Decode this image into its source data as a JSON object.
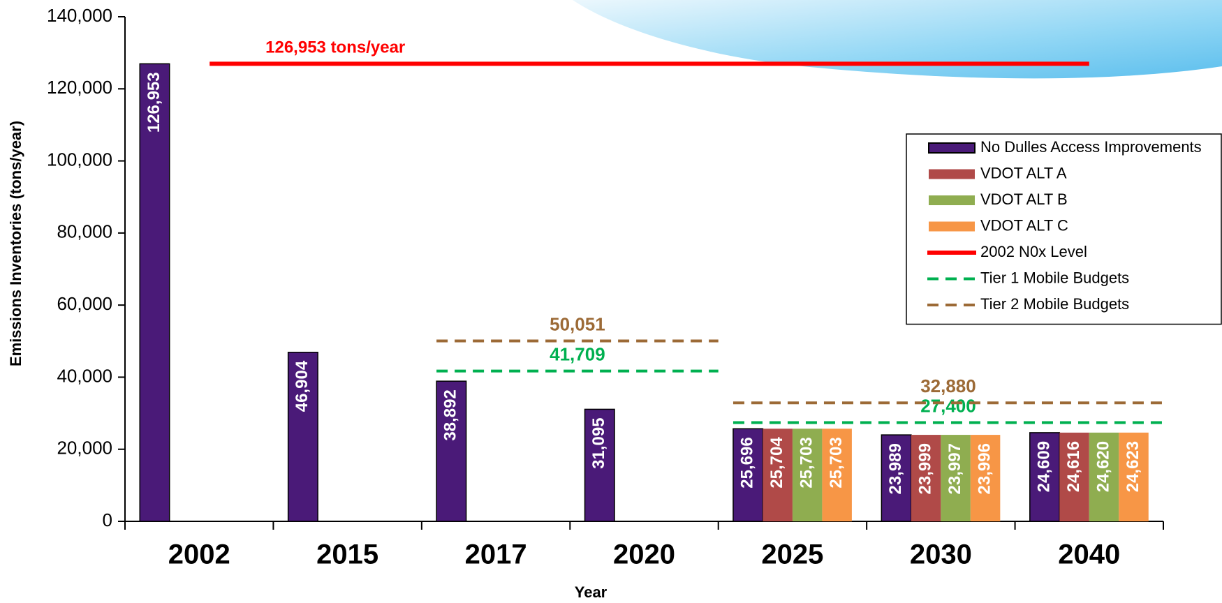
{
  "chart_data": {
    "type": "bar",
    "x_label": "Year",
    "y_label": "Emissions Inventories   (tons/year)",
    "categories": [
      "2002",
      "2015",
      "2017",
      "2020",
      "2025",
      "2030",
      "2040"
    ],
    "series": [
      {
        "name": "No Dulles Access Improvements",
        "color": "#4a1a78",
        "values": [
          126953,
          46904,
          38892,
          31095,
          25696,
          23989,
          24609
        ],
        "value_labels": [
          "126,953",
          "46,904",
          "38,892",
          "31,095",
          "25,696",
          "23,989",
          "24,609"
        ]
      },
      {
        "name": "VDOT ALT A",
        "color": "#b04a48",
        "values": [
          null,
          null,
          null,
          null,
          25704,
          23999,
          24616
        ],
        "value_labels": [
          null,
          null,
          null,
          null,
          "25,704",
          "23,999",
          "24,616"
        ]
      },
      {
        "name": "VDOT ALT B",
        "color": "#8fad50",
        "values": [
          null,
          null,
          null,
          null,
          25703,
          23997,
          24620
        ],
        "value_labels": [
          null,
          null,
          null,
          null,
          "25,703",
          "23,997",
          "24,620"
        ]
      },
      {
        "name": "VDOT ALT C",
        "color": "#f79646",
        "values": [
          null,
          null,
          null,
          null,
          25703,
          23996,
          24623
        ],
        "value_labels": [
          null,
          null,
          null,
          null,
          "25,703",
          "23,996",
          "24,623"
        ]
      }
    ],
    "lines": [
      {
        "name": "2002 N0x Level",
        "color": "#ff0000",
        "dashed": false,
        "segments": [
          {
            "from": "2002",
            "to": "2040",
            "value": 126953,
            "label": "126,953 tons/year"
          }
        ]
      },
      {
        "name": "Tier 1 Mobile Budgets",
        "color": "#00b050",
        "dashed": true,
        "segments": [
          {
            "from": "2017",
            "to": "2020",
            "value": 41709,
            "label": "41,709"
          },
          {
            "from": "2025",
            "to": "2040",
            "value": 27400,
            "label": "27,400"
          }
        ]
      },
      {
        "name": "Tier 2 Mobile Budgets",
        "color": "#9c6a36",
        "dashed": true,
        "segments": [
          {
            "from": "2017",
            "to": "2020",
            "value": 50051,
            "label": "50,051"
          },
          {
            "from": "2025",
            "to": "2040",
            "value": 32880,
            "label": "32,880"
          }
        ]
      }
    ],
    "ylim": [
      0,
      140000
    ],
    "yticks": [
      0,
      {
        "value": 20000,
        "label": "20,000"
      },
      {
        "value": 40000,
        "label": "40,000"
      },
      {
        "value": 60000,
        "label": "60,000"
      },
      {
        "value": 80000,
        "label": "80,000"
      },
      {
        "value": 100000,
        "label": "100,000"
      },
      {
        "value": 120000,
        "label": "120,000"
      },
      {
        "value": 140000,
        "label": "140,000"
      }
    ],
    "legend": "upper right"
  }
}
